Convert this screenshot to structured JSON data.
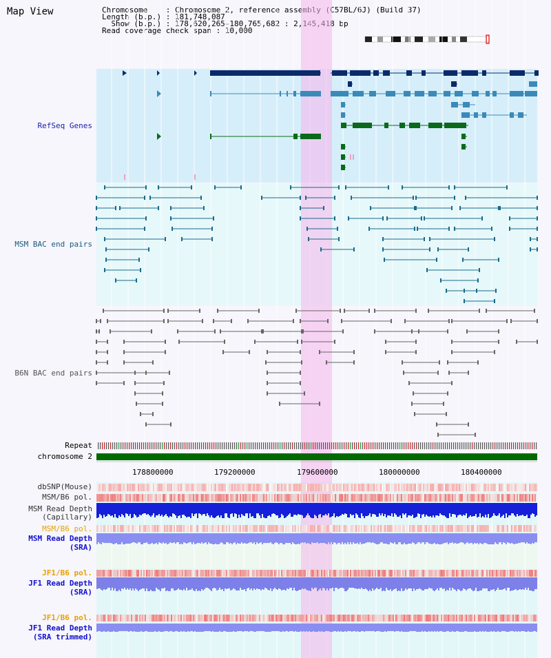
{
  "title": "Map View",
  "info": {
    "lines": [
      "Chromosome    : Chromosome 2, reference assembly (C57BL/6J) (Build 37)",
      "Length (b.p.) : 181,748,087",
      "  Show (b.p.) : 178,620,265-180,765,682 : 2,145,418 bp",
      "Read coverage check span : 10,000"
    ]
  },
  "tracks": {
    "refseq": "RefSeq Genes",
    "msm_bac": "MSM BAC end pairs",
    "b6n_bac": "B6N BAC end pairs",
    "repeat": "Repeat",
    "chromosome": "chromosome 2",
    "dbsnp": "dbSNP(Mouse)",
    "msm_b6_pol": "MSM/B6 pol.",
    "msm_depth_cap_1": "MSM Read Depth",
    "msm_depth_cap_2": "(Capillary)",
    "msm_b6_pol2": "MSM/B6 pol.",
    "msm_depth_sra_1": "MSM Read Depth",
    "msm_depth_sra_2": "(SRA)",
    "jf1_b6_pol": "JF1/B6 pol.",
    "jf1_depth_sra_1": "JF1 Read Depth",
    "jf1_depth_sra_2": "(SRA)",
    "jf1_b6_pol2": "JF1/B6 pol.",
    "jf1_depth_trim_1": "JF1 Read Depth",
    "jf1_depth_trim_2": "(SRA trimmed)"
  },
  "axis": {
    "ticks": [
      "178800000",
      "179200000",
      "179600000",
      "180000000",
      "180400000"
    ]
  },
  "colors": {
    "refseq_label": "#1a1aaa",
    "msm_label": "#1a5a7a",
    "b6n_label": "#555555",
    "pol_orange": "#e8a000",
    "depth_blue": "#1010cc"
  }
}
